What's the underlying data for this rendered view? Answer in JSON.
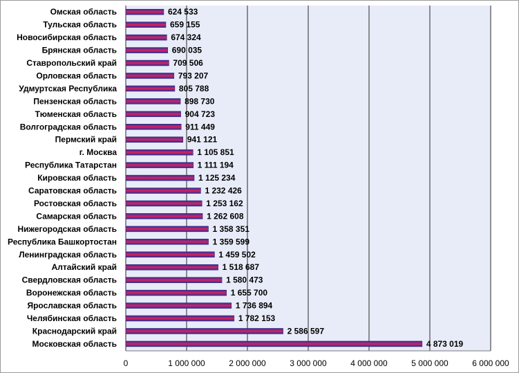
{
  "chart_data": {
    "type": "bar",
    "orientation": "horizontal",
    "categories": [
      "Омская  область",
      "Тульская  область",
      "Новосибирская  область",
      "Брянская  область",
      "Ставропольский  край",
      "Орловская  область",
      "Удмуртская  Республика",
      "Пензенская  область",
      "Тюменская  область",
      "Волгоградская  область",
      "Пермский  край",
      "г. Москва",
      "Республика  Татарстан",
      "Кировская  область",
      "Саратовская  область",
      "Ростовская  область",
      "Самарская  область",
      "Нижегородская  область",
      "Республика  Башкортостан",
      "Ленинградская  область",
      "Алтайский  край",
      "Свердловская  область",
      "Воронежская  область",
      "Ярославская  область",
      "Челябинская  область",
      "Краснодарский  край",
      "Московская  область"
    ],
    "values": [
      624533,
      659155,
      674324,
      690035,
      709506,
      793207,
      805788,
      898730,
      904723,
      911449,
      941121,
      1105851,
      1111194,
      1125234,
      1232426,
      1253162,
      1262608,
      1358351,
      1359599,
      1459502,
      1518687,
      1580473,
      1655700,
      1736894,
      1782153,
      2586597,
      4873019
    ],
    "value_labels": [
      "624 533",
      "659 155",
      "674 324",
      "690 035",
      "709 506",
      "793 207",
      "805 788",
      "898 730",
      "904 723",
      "911 449",
      "941 121",
      "1 105 851",
      "1 111 194",
      "1 125 234",
      "1 232 426",
      "1 253 162",
      "1 262 608",
      "1 358 351",
      "1 359 599",
      "1 459 502",
      "1 518 687",
      "1 580 473",
      "1 655 700",
      "1 736 894",
      "1 782 153",
      "2 586 597",
      "4 873 019"
    ],
    "xlim": [
      0,
      6000000
    ],
    "x_ticks": [
      0,
      1000000,
      2000000,
      3000000,
      4000000,
      5000000,
      6000000
    ],
    "x_tick_labels": [
      "0",
      "1 000 000",
      "2 000 000",
      "3 000 000",
      "4 000 000",
      "5 000 000",
      "6 000 000"
    ],
    "grid": "vertical",
    "legend": "none",
    "colors": {
      "plot_background": "#e8ecf8",
      "grid": "#2a2a2a",
      "bar_top": "#2b2f9e",
      "bar_middle": "#d9225c",
      "bar_bottom": "#2b2f9e"
    }
  }
}
